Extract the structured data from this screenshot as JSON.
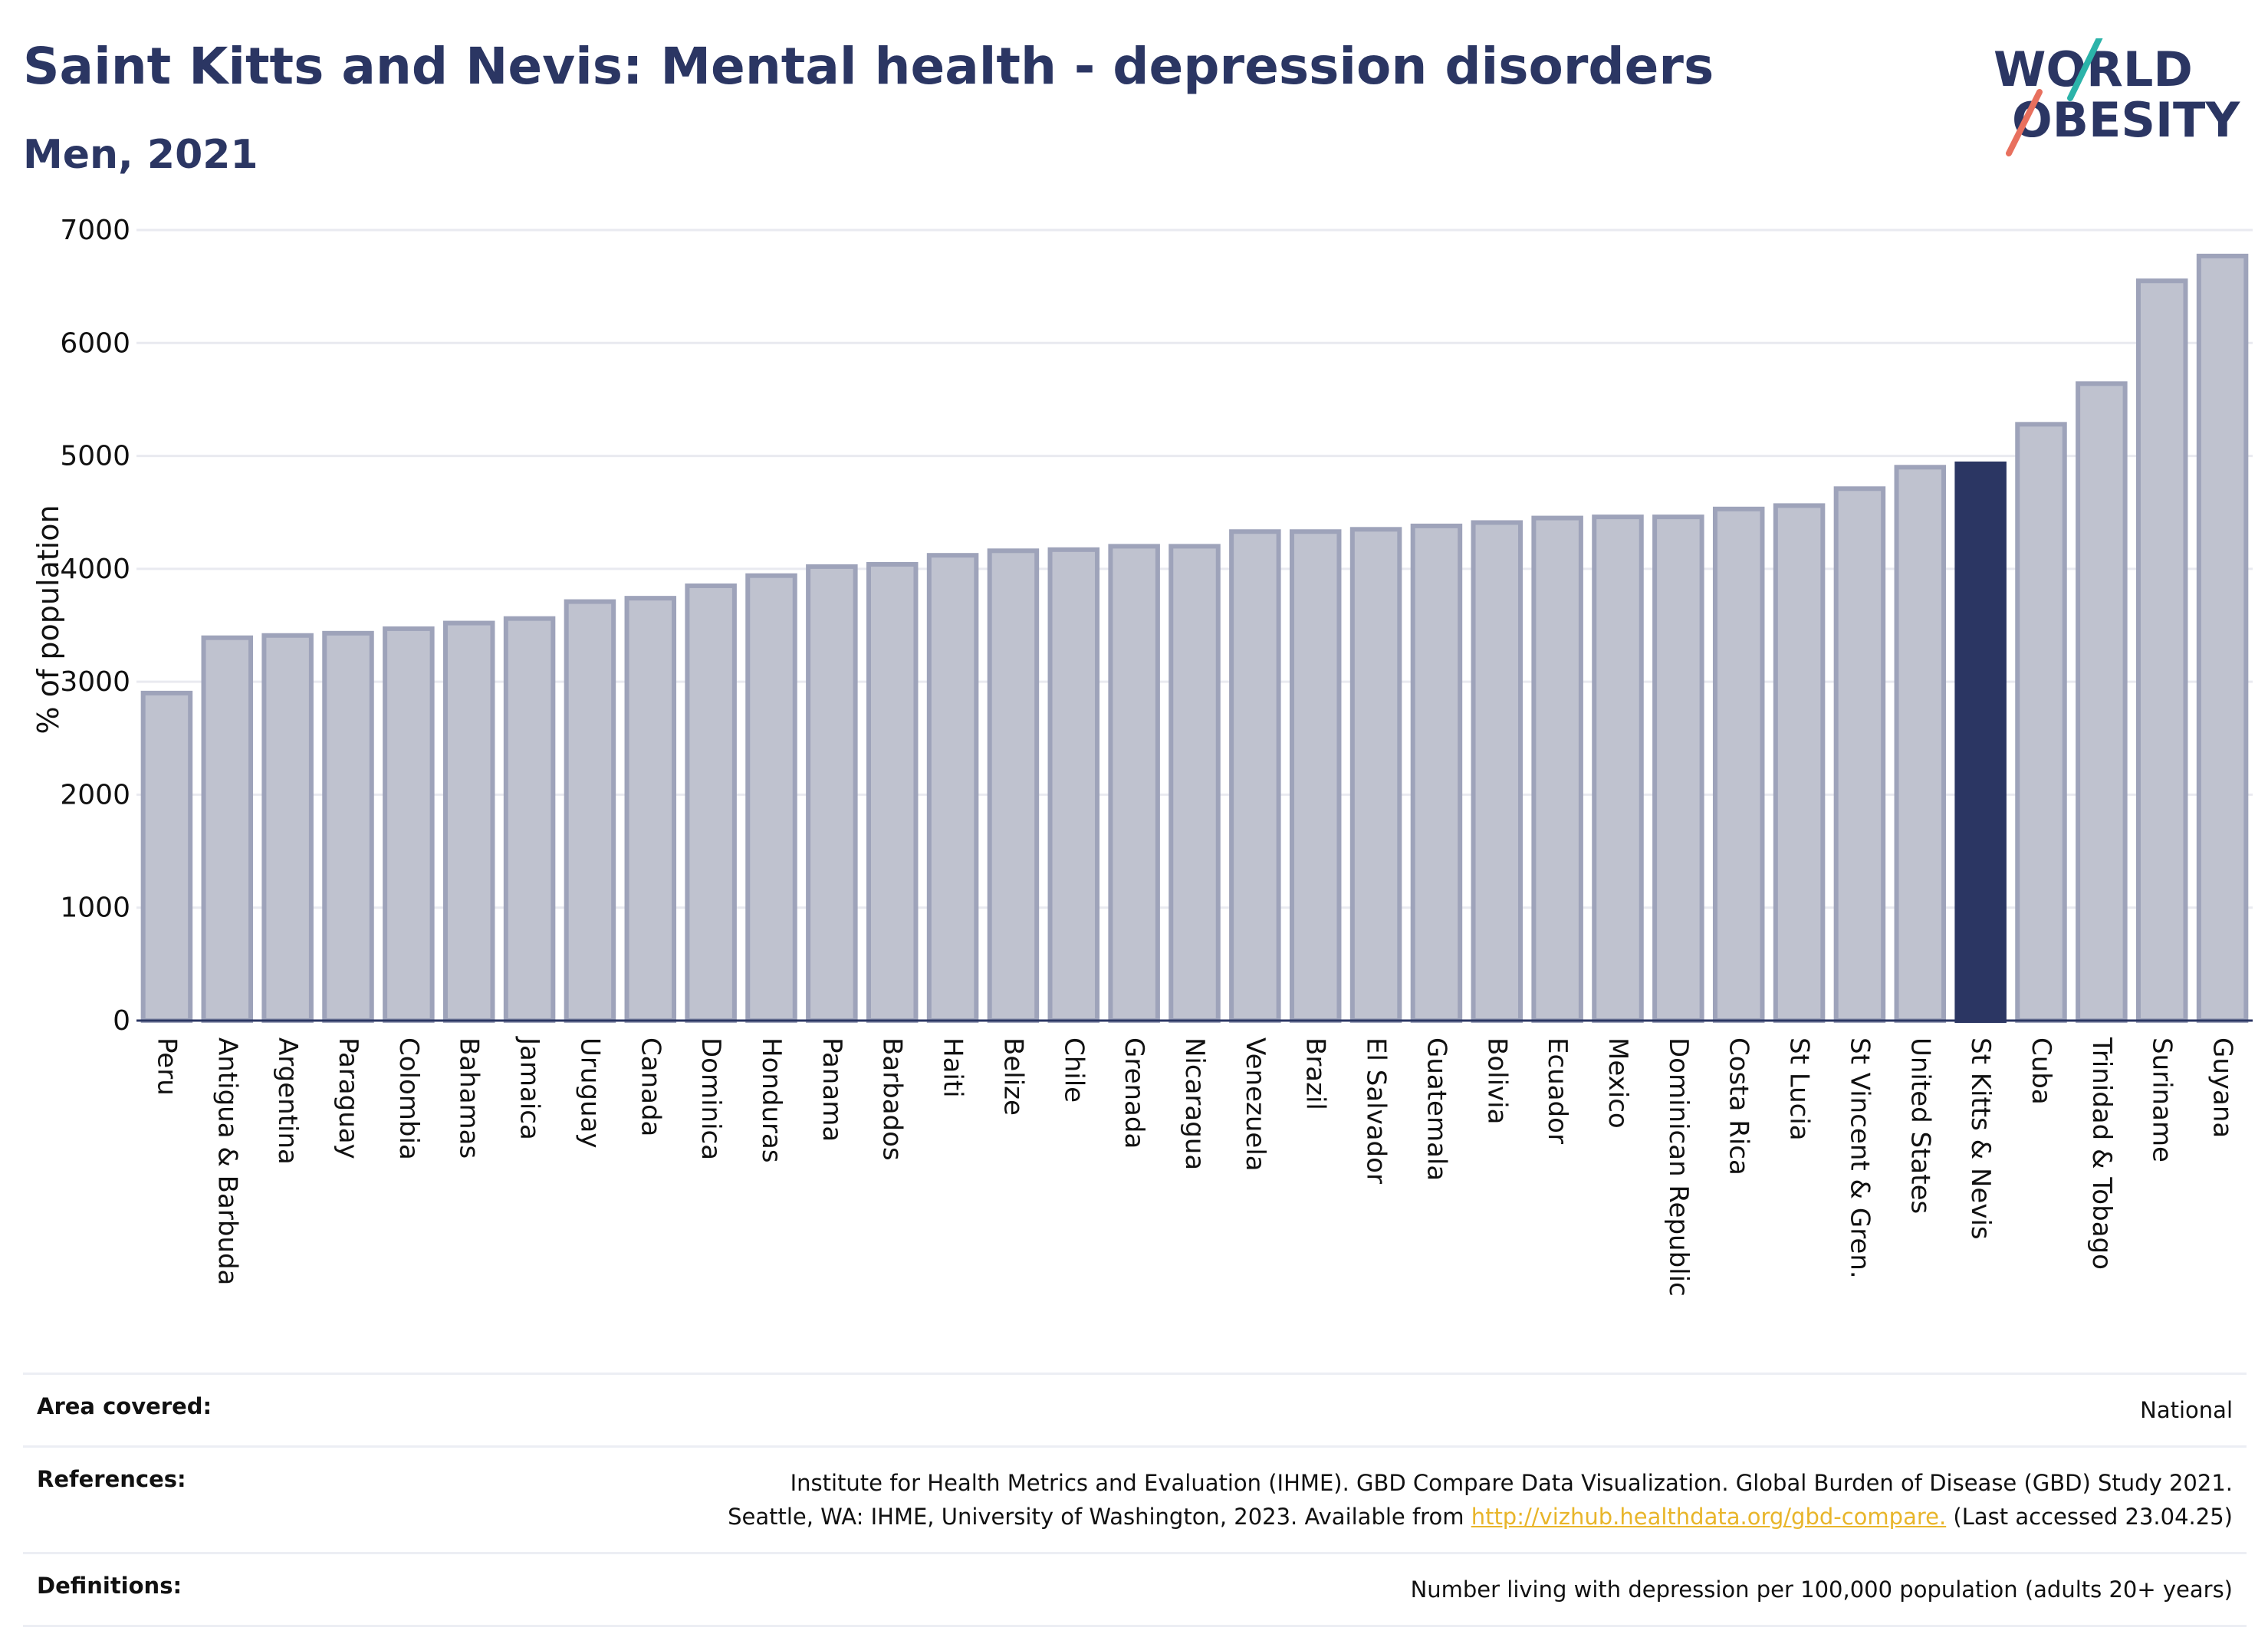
{
  "title": "Saint Kitts and Nevis: Mental health - depression disorders",
  "subtitle": "Men, 2021",
  "logo": {
    "line1": "WORLD",
    "line2": "OBESITY"
  },
  "colors": {
    "bar": "#bfc2cf",
    "bar_stroke": "#9ea3ba",
    "highlight": "#2b3663",
    "title": "#2b3663",
    "link": "#e8b52a",
    "grid": "#e9eaf0",
    "logo_teal": "#2bb3a9",
    "logo_coral": "#e8705e"
  },
  "chart_data": {
    "type": "bar",
    "title": "Saint Kitts and Nevis: Mental health - depression disorders",
    "ylabel": "% of population",
    "xlabel": "",
    "ylim": [
      0,
      7000
    ],
    "yticks": [
      0,
      1000,
      2000,
      3000,
      4000,
      5000,
      6000,
      7000
    ],
    "grid": true,
    "highlight": "St Kitts & Nevis",
    "categories": [
      "Peru",
      "Antigua & Barbuda",
      "Argentina",
      "Paraguay",
      "Colombia",
      "Bahamas",
      "Jamaica",
      "Uruguay",
      "Canada",
      "Dominica",
      "Honduras",
      "Panama",
      "Barbados",
      "Haiti",
      "Belize",
      "Chile",
      "Grenada",
      "Nicaragua",
      "Venezuela",
      "Brazil",
      "El Salvador",
      "Guatemala",
      "Bolivia",
      "Ecuador",
      "Mexico",
      "Dominican Republic",
      "Costa Rica",
      "St Lucia",
      "St Vincent & Gren.",
      "United States",
      "St Kitts & Nevis",
      "Cuba",
      "Trinidad & Tobago",
      "Suriname",
      "Guyana"
    ],
    "values": [
      2900,
      3390,
      3410,
      3430,
      3470,
      3520,
      3560,
      3710,
      3740,
      3850,
      3940,
      4020,
      4040,
      4120,
      4160,
      4170,
      4200,
      4200,
      4330,
      4330,
      4350,
      4380,
      4410,
      4450,
      4460,
      4460,
      4530,
      4560,
      4710,
      4900,
      4930,
      5280,
      5640,
      6550,
      6770
    ]
  },
  "info": {
    "area_label": "Area covered:",
    "area_value": "National",
    "references_label": "References:",
    "references_line1": "Institute for Health Metrics and Evaluation (IHME). GBD Compare Data Visualization. Global Burden of Disease (GBD) Study 2021.",
    "references_line2_pre": "Seattle, WA: IHME, University of Washington, 2023. Available from ",
    "references_link": "http://vizhub.healthdata.org/gbd-compare.",
    "references_line2_post": " (Last accessed 23.04.25)",
    "definitions_label": "Definitions:",
    "definitions_value": "Number living with depression per 100,000 population (adults 20+ years)"
  }
}
